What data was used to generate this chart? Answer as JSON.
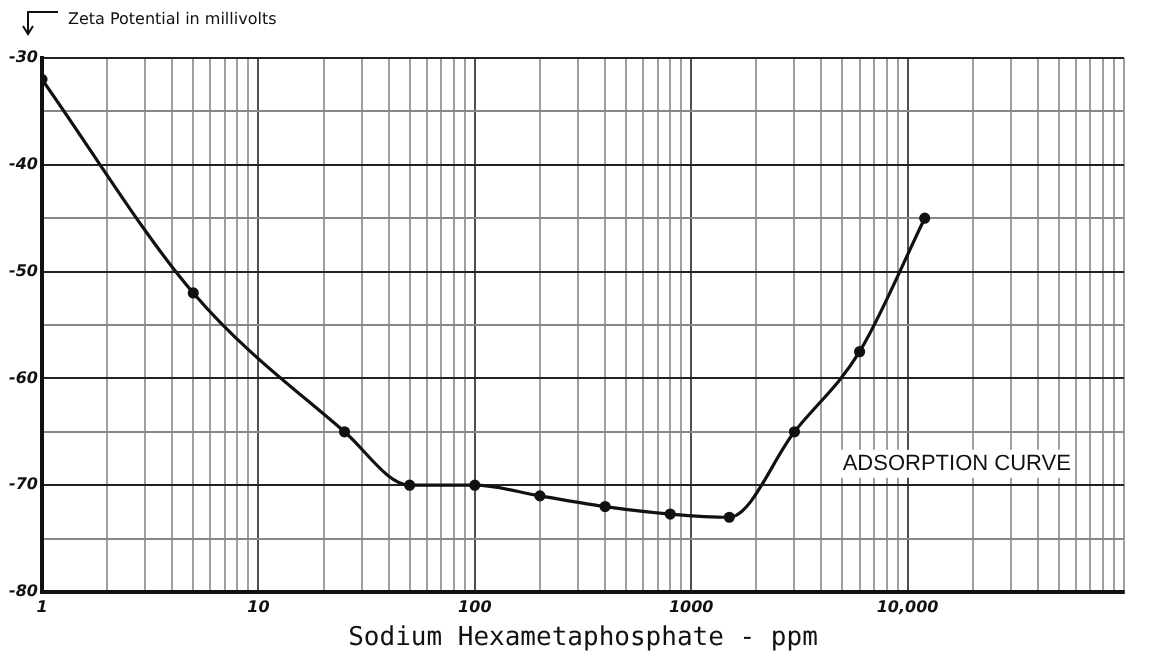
{
  "chart_data": {
    "type": "line",
    "ylabel": "Zeta Potential in millivolts",
    "xlabel": "Sodium Hexametaphosphate - ppm",
    "annotations": [
      "ADSORPTION CURVE"
    ],
    "x": [
      1,
      5,
      25,
      50,
      100,
      200,
      400,
      800,
      1500,
      3000,
      6000,
      12000
    ],
    "series": [
      {
        "color": "#111111",
        "values": [
          -32,
          -52,
          -65,
          -70,
          -70,
          -71,
          -72,
          -72.7,
          -73,
          -65,
          -57.5,
          -45
        ]
      }
    ],
    "log": "x",
    "xlim": [
      1,
      100000
    ],
    "ylim": [
      -80,
      -30
    ],
    "xticks": [
      1,
      {
        "value": 2,
        "label": null
      },
      {
        "value": 3,
        "label": null
      },
      {
        "value": 4,
        "label": null
      },
      {
        "value": 5,
        "label": null
      },
      {
        "value": 6,
        "label": null
      },
      {
        "value": 7,
        "label": null
      },
      {
        "value": 8,
        "label": null
      },
      {
        "value": 9,
        "label": null
      },
      10,
      {
        "value": 20,
        "label": null
      },
      {
        "value": 30,
        "label": null
      },
      {
        "value": 40,
        "label": null
      },
      {
        "value": 50,
        "label": null
      },
      {
        "value": 60,
        "label": null
      },
      {
        "value": 70,
        "label": null
      },
      {
        "value": 80,
        "label": null
      },
      {
        "value": 90,
        "label": null
      },
      100,
      {
        "value": 200,
        "label": null
      },
      {
        "value": 300,
        "label": null
      },
      {
        "value": 400,
        "label": null
      },
      {
        "value": 500,
        "label": null
      },
      {
        "value": 600,
        "label": null
      },
      {
        "value": 700,
        "label": null
      },
      {
        "value": 800,
        "label": null
      },
      {
        "value": 900,
        "label": null
      },
      1000,
      {
        "value": 2000,
        "label": null
      },
      {
        "value": 3000,
        "label": null
      },
      {
        "value": 4000,
        "label": null
      },
      {
        "value": 5000,
        "label": null
      },
      {
        "value": 6000,
        "label": null
      },
      {
        "value": 7000,
        "label": null
      },
      {
        "value": 8000,
        "label": null
      },
      {
        "value": 9000,
        "label": null
      },
      {
        "value": 10000,
        "label": "10,000"
      },
      {
        "value": 20000,
        "label": null
      },
      {
        "value": 30000,
        "label": null
      },
      {
        "value": 40000,
        "label": null
      },
      {
        "value": 50000,
        "label": null
      },
      {
        "value": 60000,
        "label": null
      },
      {
        "value": 70000,
        "label": null
      },
      {
        "value": 80000,
        "label": null
      },
      {
        "value": 90000,
        "label": null
      },
      {
        "value": 100000,
        "label": null
      }
    ],
    "yticks": [
      -80,
      {
        "value": -75,
        "label": null
      },
      -70,
      {
        "value": -65,
        "label": null
      },
      -60,
      {
        "value": -55,
        "label": null
      },
      -50,
      {
        "value": -45,
        "label": null
      },
      -40,
      {
        "value": -35,
        "label": null
      },
      -30
    ],
    "grid": true,
    "marker": "circle",
    "line_style": "solid",
    "legend": false
  }
}
